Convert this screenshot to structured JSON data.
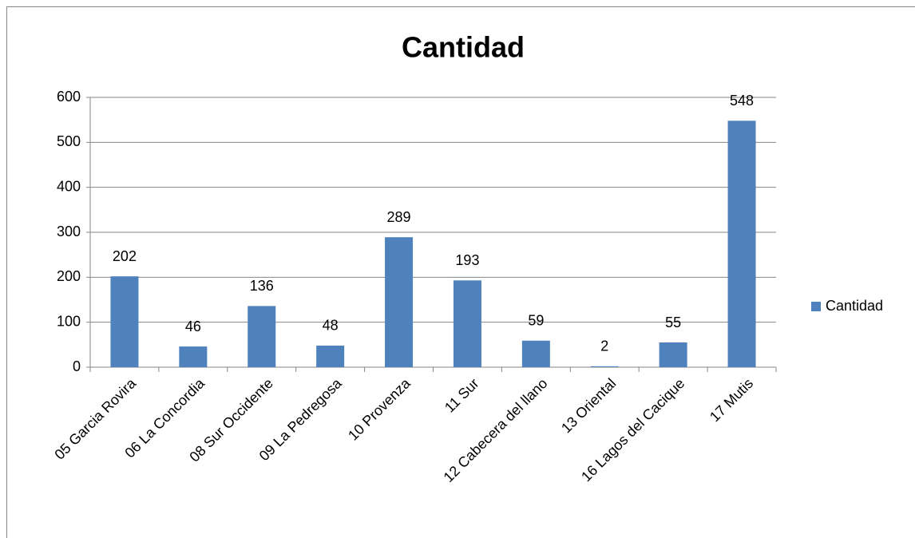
{
  "chart_data": {
    "type": "bar",
    "title": "Cantidad",
    "categories": [
      "05 Garcia Rovira",
      "06 La Concordia",
      "08 Sur Occidente",
      "09 La Pedregosa",
      "10 Provenza",
      "11 Sur",
      "12 Cabecera del llano",
      "13 Oriental",
      "16 Lagos del Cacique",
      "17 Mutis"
    ],
    "series": [
      {
        "name": "Cantidad",
        "color": "#4f81bd",
        "values": [
          202,
          46,
          136,
          48,
          289,
          193,
          59,
          2,
          55,
          548
        ]
      }
    ],
    "ylim": [
      0,
      600
    ],
    "yticks": [
      0,
      100,
      200,
      300,
      400,
      500,
      600
    ],
    "grid": true,
    "legend": "right"
  }
}
